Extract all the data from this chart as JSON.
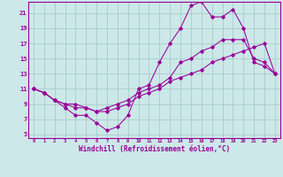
{
  "xlabel": "Windchill (Refroidissement éolien,°C)",
  "bg_color": "#cce8e8",
  "grid_color": "#aacccc",
  "line_color": "#990099",
  "x_ticks": [
    0,
    1,
    2,
    3,
    4,
    5,
    6,
    7,
    8,
    9,
    10,
    11,
    12,
    13,
    14,
    15,
    16,
    17,
    18,
    19,
    20,
    21,
    22,
    23
  ],
  "y_ticks": [
    5,
    7,
    9,
    11,
    13,
    15,
    17,
    19,
    21
  ],
  "xlim": [
    -0.5,
    23.5
  ],
  "ylim": [
    4.5,
    22.5
  ],
  "line1_x": [
    0,
    1,
    2,
    3,
    4,
    5,
    6,
    7,
    8,
    9,
    10,
    11,
    12,
    13,
    14,
    15,
    16,
    17,
    18,
    19,
    20,
    21,
    22,
    23
  ],
  "line1_y": [
    11.0,
    10.5,
    9.5,
    8.5,
    7.5,
    7.5,
    6.5,
    5.5,
    6.0,
    7.5,
    11.0,
    11.5,
    14.5,
    17.0,
    19.0,
    22.0,
    22.5,
    20.5,
    20.5,
    21.5,
    19.0,
    14.5,
    14.0,
    13.0
  ],
  "line2_x": [
    0,
    1,
    2,
    3,
    4,
    5,
    6,
    7,
    8,
    9,
    10,
    11,
    12,
    13,
    14,
    15,
    16,
    17,
    18,
    19,
    20,
    21,
    22,
    23
  ],
  "line2_y": [
    11.0,
    10.5,
    9.5,
    9.0,
    9.0,
    8.5,
    8.0,
    8.0,
    8.5,
    9.0,
    10.0,
    10.5,
    11.0,
    12.0,
    12.5,
    13.0,
    13.5,
    14.5,
    15.0,
    15.5,
    16.0,
    16.5,
    17.0,
    13.0
  ],
  "line3_x": [
    0,
    1,
    2,
    3,
    4,
    5,
    6,
    7,
    8,
    9,
    10,
    11,
    12,
    13,
    14,
    15,
    16,
    17,
    18,
    19,
    20,
    21,
    22,
    23
  ],
  "line3_y": [
    11.0,
    10.5,
    9.5,
    9.0,
    8.5,
    8.5,
    8.0,
    8.5,
    9.0,
    9.5,
    10.5,
    11.0,
    11.5,
    12.5,
    14.5,
    15.0,
    16.0,
    16.5,
    17.5,
    17.5,
    17.5,
    15.0,
    14.5,
    13.0
  ]
}
